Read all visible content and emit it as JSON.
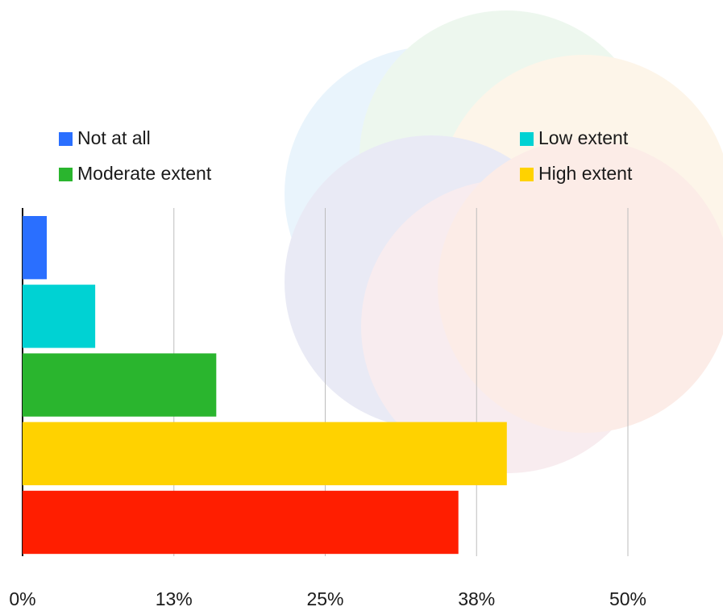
{
  "chart_data": {
    "type": "bar",
    "orientation": "horizontal",
    "series": [
      {
        "name": "Not at all",
        "color": "#2a6fff",
        "values": [
          2
        ]
      },
      {
        "name": "Low extent",
        "color": "#00d2d3",
        "values": [
          6
        ]
      },
      {
        "name": "Moderate extent",
        "color": "#2ab52e",
        "values": [
          16
        ]
      },
      {
        "name": "High extent",
        "color": "#ffd200",
        "values": [
          40
        ]
      },
      {
        "color": "#ff1e00",
        "values": [
          36
        ]
      }
    ],
    "xlim": [
      0,
      50
    ],
    "xticks": [
      {
        "value": 0,
        "label": "0%"
      },
      {
        "value": 12.5,
        "label": "13%"
      },
      {
        "value": 25,
        "label": "25%"
      },
      {
        "value": 37.5,
        "label": "38%"
      },
      {
        "value": 50,
        "label": "50%"
      }
    ],
    "grid": true
  }
}
